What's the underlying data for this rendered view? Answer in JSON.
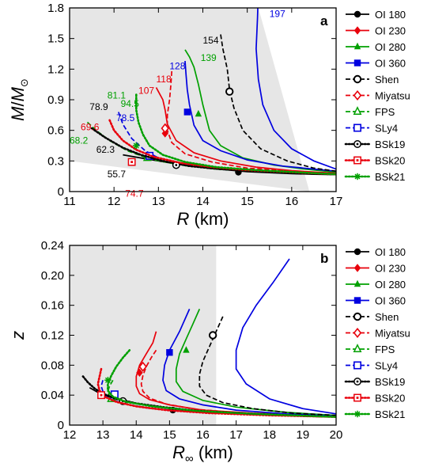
{
  "chart_data": [
    {
      "panel": "a",
      "type": "line",
      "xlabel_main": "R",
      "xlabel_unit": " (km)",
      "ylabel_main": "M",
      "ylabel_sep": "/",
      "ylabel_sub": "M",
      "ylabel_subscript": "⊙",
      "xlim": [
        11,
        17
      ],
      "ylim": [
        0,
        1.8
      ],
      "xticks": [
        11,
        12,
        13,
        14,
        15,
        16,
        17
      ],
      "yticks": [
        "0",
        "0.3",
        "0.6",
        "0.9",
        "1.2",
        "1.5",
        "1.8"
      ],
      "shaded": "causality-excluded region (upper left)",
      "series": [
        {
          "name": "OI 180",
          "color": "#000000",
          "dash": "solid",
          "marker": "filled-circle",
          "x": [
            12.2,
            12.6,
            13.0,
            13.4,
            13.8,
            14.2,
            14.6,
            15.0,
            15.5,
            16.0,
            16.5,
            17.0
          ],
          "y": [
            0.36,
            0.33,
            0.3,
            0.27,
            0.245,
            0.225,
            0.21,
            0.195,
            0.185,
            0.175,
            0.17,
            0.165
          ],
          "marker_point": [
            14.8,
            0.19
          ]
        },
        {
          "name": "OI 230",
          "color": "#e8000b",
          "dash": "solid",
          "marker": "filled-diamond",
          "x": [
            12.95,
            13.0,
            13.1,
            13.15,
            13.2,
            13.4,
            13.8,
            14.4,
            15.2,
            16.0,
            17.0
          ],
          "y": [
            1.02,
            0.98,
            0.9,
            0.8,
            0.66,
            0.5,
            0.38,
            0.3,
            0.24,
            0.205,
            0.18
          ],
          "marker_point": [
            13.15,
            0.57
          ]
        },
        {
          "name": "OI 280",
          "color": "#00a000",
          "dash": "solid",
          "marker": "filled-triangle",
          "x": [
            13.6,
            13.7,
            13.8,
            13.9,
            14.0,
            14.15,
            14.4,
            14.9,
            15.6,
            16.3,
            17.0
          ],
          "y": [
            1.39,
            1.32,
            1.22,
            1.05,
            0.85,
            0.6,
            0.45,
            0.33,
            0.26,
            0.22,
            0.19
          ],
          "marker_point": [
            13.9,
            0.76
          ]
        },
        {
          "name": "OI 360",
          "color": "#0000e0",
          "dash": "solid",
          "marker": "filled-square",
          "x": [
            13.6,
            13.62,
            13.65,
            13.7,
            13.8,
            14.0,
            14.4,
            15.0,
            15.8,
            16.5,
            17.0
          ],
          "y": [
            1.28,
            1.15,
            1.0,
            0.85,
            0.65,
            0.5,
            0.4,
            0.31,
            0.25,
            0.22,
            0.2
          ],
          "marker_point": [
            13.65,
            0.78
          ]
        },
        {
          "name": "OI 360 upper",
          "color": "#0000e0",
          "dash": "solid",
          "marker": "",
          "x": [
            15.25,
            15.23,
            15.2,
            15.25,
            15.35,
            15.6,
            16.0,
            16.5,
            17.0
          ],
          "y": [
            1.97,
            1.7,
            1.4,
            1.1,
            0.85,
            0.6,
            0.42,
            0.3,
            0.22
          ]
        },
        {
          "name": "Shen",
          "color": "#000000",
          "dash": "dashed",
          "marker": "open-circle",
          "x": [
            14.4,
            14.45,
            14.55,
            14.6,
            14.7,
            14.9,
            15.3,
            15.9,
            16.5,
            17.0
          ],
          "y": [
            1.54,
            1.4,
            1.2,
            1.0,
            0.82,
            0.6,
            0.42,
            0.3,
            0.23,
            0.2
          ],
          "marker_point": [
            14.6,
            0.98
          ]
        },
        {
          "name": "Miyatsu",
          "color": "#e8000b",
          "dash": "dashed",
          "marker": "open-diamond",
          "x": [
            13.3,
            13.28,
            13.25,
            13.2,
            13.2,
            13.3,
            13.6,
            14.2,
            15.0,
            16.0,
            17.0
          ],
          "y": [
            1.18,
            1.05,
            0.9,
            0.75,
            0.6,
            0.48,
            0.37,
            0.29,
            0.23,
            0.2,
            0.18
          ],
          "marker_point": [
            13.15,
            0.62
          ]
        },
        {
          "name": "FPS",
          "color": "#00a000",
          "dash": "dashed",
          "marker": "open-triangle",
          "x": [
            11.4,
            11.6,
            11.9,
            12.3,
            12.8,
            13.5,
            14.3,
            15.2,
            16.1,
            17.0
          ],
          "y": [
            0.68,
            0.6,
            0.5,
            0.4,
            0.32,
            0.26,
            0.22,
            0.2,
            0.18,
            0.17
          ],
          "marker_point": [
            12.75,
            0.33
          ]
        },
        {
          "name": "SLy4",
          "color": "#0000e0",
          "dash": "dashed",
          "marker": "open-square",
          "x": [
            12.1,
            12.2,
            12.4,
            12.7,
            13.0,
            13.6,
            14.3,
            15.2,
            16.1,
            17.0
          ],
          "y": [
            0.78,
            0.66,
            0.52,
            0.4,
            0.33,
            0.27,
            0.23,
            0.2,
            0.18,
            0.17
          ],
          "marker_point": [
            12.8,
            0.35
          ]
        },
        {
          "name": "BSk19",
          "color": "#000000",
          "dash": "dotted",
          "marker": "circle-dot",
          "x": [
            11.5,
            11.8,
            12.2,
            12.6,
            13.1,
            13.7,
            14.4,
            15.2,
            16.1,
            17.0
          ],
          "y": [
            0.62,
            0.53,
            0.43,
            0.36,
            0.3,
            0.25,
            0.22,
            0.2,
            0.18,
            0.17
          ],
          "marker_point": [
            13.4,
            0.26
          ]
        },
        {
          "name": "BSk20",
          "color": "#e8000b",
          "dash": "dotted",
          "marker": "square-dot",
          "x": [
            11.9,
            12.0,
            12.2,
            12.5,
            12.9,
            13.5,
            14.2,
            15.0,
            16.0,
            17.0
          ],
          "y": [
            0.7,
            0.6,
            0.5,
            0.41,
            0.34,
            0.28,
            0.24,
            0.21,
            0.19,
            0.17
          ],
          "marker_point": [
            12.4,
            0.29
          ]
        },
        {
          "name": "BSk21",
          "color": "#00a000",
          "dash": "dotted",
          "marker": "asterisk",
          "x": [
            12.5,
            12.5,
            12.55,
            12.65,
            12.8,
            13.1,
            13.6,
            14.3,
            15.2,
            16.1,
            17.0
          ],
          "y": [
            0.95,
            0.8,
            0.68,
            0.56,
            0.45,
            0.36,
            0.29,
            0.24,
            0.21,
            0.19,
            0.17
          ],
          "marker_point": [
            12.5,
            0.45
          ]
        }
      ],
      "annotations": [
        {
          "text": "197",
          "color": "#0000e0",
          "x": 15.5,
          "y": 1.71
        },
        {
          "text": "154",
          "color": "#000000",
          "x": 14.0,
          "y": 1.45
        },
        {
          "text": "139",
          "color": "#00a000",
          "x": 13.95,
          "y": 1.28
        },
        {
          "text": "128",
          "color": "#0000e0",
          "x": 13.25,
          "y": 1.2
        },
        {
          "text": "118",
          "color": "#e8000b",
          "x": 12.95,
          "y": 1.07
        },
        {
          "text": "107",
          "color": "#e8000b",
          "x": 12.55,
          "y": 0.96
        },
        {
          "text": "94.5",
          "color": "#00a000",
          "x": 12.15,
          "y": 0.83
        },
        {
          "text": "81.1",
          "color": "#00a000",
          "x": 11.85,
          "y": 0.91
        },
        {
          "text": "78.9",
          "color": "#000000",
          "x": 11.45,
          "y": 0.8
        },
        {
          "text": "78.5",
          "color": "#0000e0",
          "x": 12.05,
          "y": 0.69
        },
        {
          "text": "69.6",
          "color": "#e8000b",
          "x": 11.25,
          "y": 0.6
        },
        {
          "text": "68.2",
          "color": "#00a000",
          "x": 11.0,
          "y": 0.47
        },
        {
          "text": "62.3",
          "color": "#000000",
          "x": 11.6,
          "y": 0.38
        },
        {
          "text": "55.7",
          "color": "#000000",
          "x": 11.85,
          "y": 0.14
        },
        {
          "text": "74.7",
          "color": "#e8000b",
          "x": 12.25,
          "y": -0.05
        }
      ]
    },
    {
      "panel": "b",
      "type": "line",
      "xlabel_main": "R",
      "xlabel_subscript": "∞",
      "xlabel_unit": " (km)",
      "ylabel_main": "z",
      "xlim": [
        12,
        20
      ],
      "ylim": [
        0,
        0.24
      ],
      "xticks": [
        12,
        13,
        14,
        15,
        16,
        17,
        18,
        19,
        20
      ],
      "yticks": [
        "0",
        "0.04",
        "0.08",
        "0.12",
        "0.16",
        "0.20",
        "0.24"
      ],
      "shaded_xmax": 16.4,
      "series": [
        {
          "name": "OI 180",
          "color": "#000000",
          "dash": "solid",
          "marker": "filled-circle",
          "x": [
            12.6,
            13.0,
            13.5,
            14.0,
            14.5,
            15.0,
            16.0,
            17.0,
            18.0,
            19.0,
            20.0
          ],
          "y": [
            0.05,
            0.04,
            0.034,
            0.029,
            0.025,
            0.022,
            0.018,
            0.016,
            0.014,
            0.012,
            0.011
          ],
          "marker_point": [
            15.1,
            0.02
          ]
        },
        {
          "name": "OI 230",
          "color": "#e8000b",
          "dash": "solid",
          "marker": "filled-diamond",
          "x": [
            14.6,
            14.5,
            14.3,
            14.1,
            14.0,
            14.0,
            14.1,
            14.4,
            15.0,
            16.0,
            17.5,
            20.0
          ],
          "y": [
            0.125,
            0.11,
            0.095,
            0.08,
            0.065,
            0.052,
            0.042,
            0.034,
            0.027,
            0.02,
            0.016,
            0.012
          ],
          "marker_point": [
            14.1,
            0.07
          ]
        },
        {
          "name": "OI 280",
          "color": "#00a000",
          "dash": "solid",
          "marker": "filled-triangle",
          "x": [
            15.9,
            15.7,
            15.5,
            15.3,
            15.2,
            15.2,
            15.4,
            16.0,
            17.0,
            18.5,
            20.0
          ],
          "y": [
            0.155,
            0.135,
            0.115,
            0.095,
            0.075,
            0.058,
            0.045,
            0.033,
            0.024,
            0.017,
            0.013
          ],
          "marker_point": [
            15.5,
            0.1
          ]
        },
        {
          "name": "OI 360",
          "color": "#0000e0",
          "dash": "solid",
          "marker": "filled-square",
          "x": [
            15.6,
            15.3,
            15.0,
            14.85,
            14.8,
            14.9,
            15.3,
            16.0,
            17.0,
            18.5,
            20.0
          ],
          "y": [
            0.155,
            0.125,
            0.1,
            0.08,
            0.06,
            0.046,
            0.035,
            0.027,
            0.02,
            0.015,
            0.012
          ],
          "marker_point": [
            15.0,
            0.097
          ]
        },
        {
          "name": "OI 360 upper",
          "color": "#0000e0",
          "dash": "solid",
          "marker": "",
          "x": [
            18.6,
            18.1,
            17.6,
            17.2,
            17.0,
            17.0,
            17.3,
            18.0,
            19.0,
            20.0
          ],
          "y": [
            0.222,
            0.19,
            0.16,
            0.13,
            0.1,
            0.075,
            0.055,
            0.035,
            0.022,
            0.015
          ]
        },
        {
          "name": "Shen",
          "color": "#000000",
          "dash": "dashed",
          "marker": "open-circle",
          "x": [
            16.6,
            16.4,
            16.2,
            16.0,
            15.9,
            15.9,
            16.1,
            16.6,
            17.5,
            18.7,
            20.0
          ],
          "y": [
            0.145,
            0.125,
            0.105,
            0.085,
            0.068,
            0.052,
            0.04,
            0.03,
            0.022,
            0.016,
            0.013
          ],
          "marker_point": [
            16.3,
            0.12
          ]
        },
        {
          "name": "Miyatsu",
          "color": "#e8000b",
          "dash": "dashed",
          "marker": "open-diamond",
          "x": [
            14.6,
            14.45,
            14.3,
            14.2,
            14.15,
            14.2,
            14.4,
            14.9,
            15.8,
            17.2,
            20.0
          ],
          "y": [
            0.1,
            0.09,
            0.078,
            0.066,
            0.055,
            0.045,
            0.036,
            0.028,
            0.021,
            0.016,
            0.011
          ],
          "marker_point": [
            14.2,
            0.078
          ]
        },
        {
          "name": "FPS",
          "color": "#00a000",
          "dash": "dashed",
          "marker": "open-triangle",
          "x": [
            13.3,
            13.2,
            13.15,
            13.2,
            13.4,
            13.8,
            14.5,
            15.5,
            17.0,
            18.5,
            20.0
          ],
          "y": [
            0.06,
            0.052,
            0.045,
            0.038,
            0.032,
            0.027,
            0.022,
            0.018,
            0.015,
            0.013,
            0.011
          ],
          "marker_point": [
            13.25,
            0.035
          ]
        },
        {
          "name": "SLy4",
          "color": "#0000e0",
          "dash": "dashed",
          "marker": "open-square",
          "x": [
            13.0,
            12.95,
            13.0,
            13.1,
            13.3,
            13.7,
            14.3,
            15.2,
            16.5,
            18.2,
            20.0
          ],
          "y": [
            0.06,
            0.052,
            0.045,
            0.039,
            0.033,
            0.028,
            0.023,
            0.019,
            0.016,
            0.013,
            0.011
          ],
          "marker_point": [
            13.35,
            0.041
          ]
        },
        {
          "name": "BSk19",
          "color": "#000000",
          "dash": "dotted",
          "marker": "circle-dot",
          "x": [
            12.4,
            12.55,
            12.75,
            13.0,
            13.4,
            14.0,
            14.8,
            15.8,
            17.0,
            18.5,
            20.0
          ],
          "y": [
            0.065,
            0.057,
            0.049,
            0.042,
            0.035,
            0.029,
            0.024,
            0.019,
            0.016,
            0.013,
            0.011
          ],
          "marker_point": [
            13.6,
            0.032
          ]
        },
        {
          "name": "BSk20",
          "color": "#e8000b",
          "dash": "dotted",
          "marker": "square-dot",
          "x": [
            12.95,
            12.9,
            12.85,
            12.9,
            13.05,
            13.4,
            14.0,
            14.9,
            16.2,
            18.0,
            20.0
          ],
          "y": [
            0.075,
            0.065,
            0.055,
            0.046,
            0.038,
            0.031,
            0.025,
            0.02,
            0.016,
            0.013,
            0.011
          ],
          "marker_point": [
            12.95,
            0.04
          ]
        },
        {
          "name": "BSk21",
          "color": "#00a000",
          "dash": "dotted",
          "marker": "asterisk",
          "x": [
            13.8,
            13.6,
            13.4,
            13.25,
            13.15,
            13.15,
            13.3,
            13.7,
            14.5,
            15.8,
            17.5,
            20.0
          ],
          "y": [
            0.1,
            0.09,
            0.078,
            0.066,
            0.055,
            0.046,
            0.038,
            0.031,
            0.025,
            0.019,
            0.015,
            0.011
          ],
          "marker_point": [
            13.15,
            0.06
          ]
        }
      ]
    }
  ]
}
